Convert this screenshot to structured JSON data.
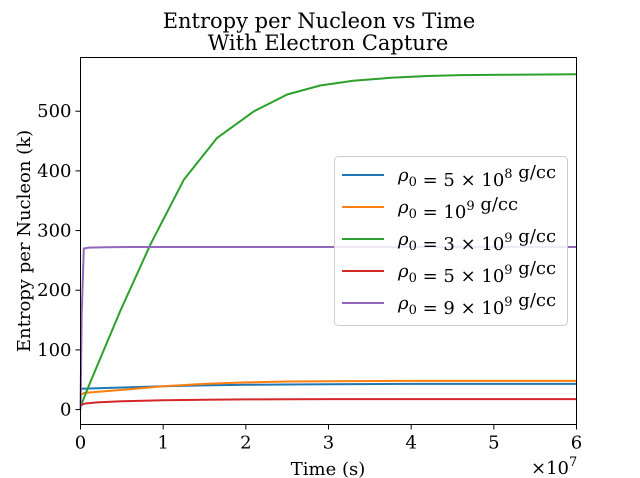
{
  "chart_data": {
    "type": "line",
    "title": "Entropy per Nucleon vs Time",
    "subtitle": "With Electron Capture",
    "xlabel": "Time (s)",
    "ylabel": "Entropy per Nucleon (k)",
    "x_multiplier": "×10",
    "x_multiplier_exp": "7",
    "xlim": [
      0,
      60000000
    ],
    "ylim": [
      -25,
      590
    ],
    "xticks": [
      0,
      10000000,
      20000000,
      30000000,
      40000000,
      50000000,
      60000000
    ],
    "xtick_labels": [
      "0",
      "1",
      "2",
      "3",
      "4",
      "5",
      "6"
    ],
    "yticks": [
      0,
      100,
      200,
      300,
      400,
      500
    ],
    "ytick_labels": [
      "0",
      "100",
      "200",
      "300",
      "400",
      "500"
    ],
    "grid": false,
    "legend_position": "center-right",
    "series": [
      {
        "name": "ρ0 = 5 × 10^8 g/cc",
        "color": "#1f77b4",
        "x": [
          0,
          5000000,
          10000000,
          15000000,
          20000000,
          25000000,
          30000000,
          40000000,
          50000000,
          60000000
        ],
        "y": [
          35,
          37,
          39,
          40.5,
          41.5,
          42,
          42.5,
          43,
          43,
          43
        ]
      },
      {
        "name": "ρ0 = 10^9 g/cc",
        "color": "#ff7f0e",
        "x": [
          0,
          500000,
          5000000,
          10000000,
          15000000,
          20000000,
          25000000,
          30000000,
          40000000,
          50000000,
          60000000
        ],
        "y": [
          25,
          28,
          33,
          39,
          43,
          45.5,
          47,
          47.5,
          48,
          48,
          48
        ]
      },
      {
        "name": "ρ0 = 3 × 10^9 g/cc",
        "color": "#2ca02c",
        "x": [
          0,
          1000000,
          4800000,
          8500000,
          12500000,
          16500000,
          21000000,
          25000000,
          29000000,
          33000000,
          37500000,
          42000000,
          46000000,
          51000000,
          56000000,
          60000000
        ],
        "y": [
          5,
          40,
          165,
          278,
          385,
          455,
          500,
          528,
          543,
          551,
          556,
          559,
          560.5,
          561,
          561.5,
          562
        ]
      },
      {
        "name": "ρ0 = 5 × 10^9 g/cc",
        "color": "#d62728",
        "x": [
          0,
          500000,
          2000000,
          5000000,
          10000000,
          15000000,
          20000000,
          30000000,
          40000000,
          50000000,
          60000000
        ],
        "y": [
          7,
          10,
          12,
          14,
          15.5,
          16.5,
          17,
          17.5,
          17.5,
          17.5,
          17.5
        ]
      },
      {
        "name": "ρ0 = 9 × 10^9 g/cc",
        "color": "#9467bd",
        "x": [
          0,
          150000,
          400000,
          1000000,
          3000000,
          6000000,
          10000000,
          20000000,
          30000000,
          40000000,
          50000000,
          60000000
        ],
        "y": [
          0,
          160,
          270,
          271.5,
          272,
          272.5,
          272.5,
          272.5,
          272.5,
          272.5,
          272.5,
          272.5
        ]
      }
    ]
  }
}
